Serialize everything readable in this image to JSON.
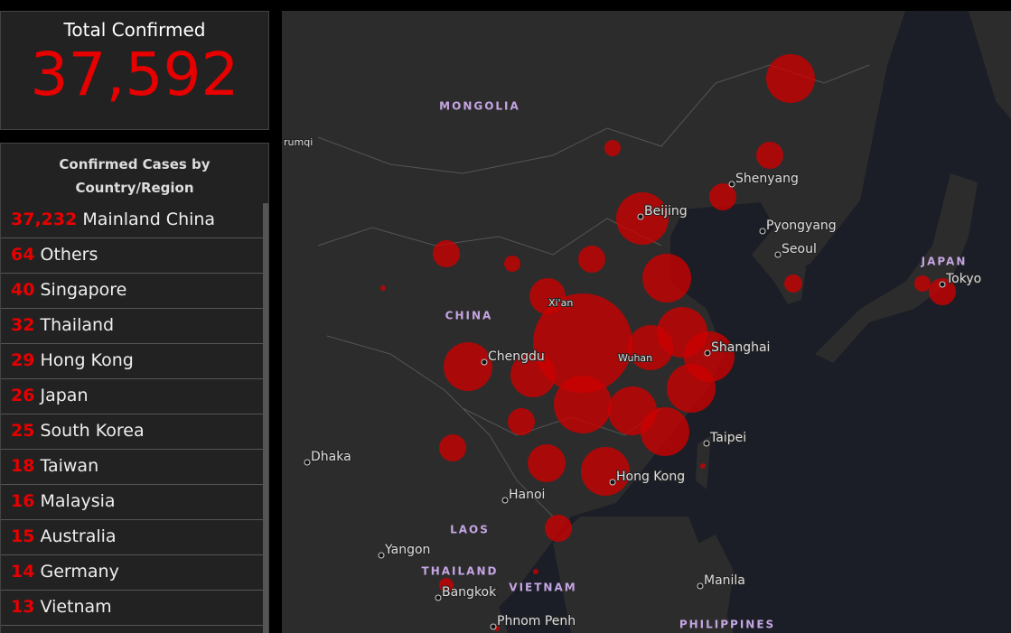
{
  "total": {
    "title": "Total Confirmed",
    "value": "37,592"
  },
  "list": {
    "title": "Confirmed Cases by Country/Region",
    "rows": [
      {
        "count": "37,232",
        "name": "Mainland China"
      },
      {
        "count": "64",
        "name": "Others"
      },
      {
        "count": "40",
        "name": "Singapore"
      },
      {
        "count": "32",
        "name": "Thailand"
      },
      {
        "count": "29",
        "name": "Hong Kong"
      },
      {
        "count": "26",
        "name": "Japan"
      },
      {
        "count": "25",
        "name": "South Korea"
      },
      {
        "count": "18",
        "name": "Taiwan"
      },
      {
        "count": "16",
        "name": "Malaysia"
      },
      {
        "count": "15",
        "name": "Australia"
      },
      {
        "count": "14",
        "name": "Germany"
      },
      {
        "count": "13",
        "name": "Vietnam"
      }
    ]
  },
  "map": {
    "countries": [
      "MONGOLIA",
      "CHINA",
      "JAPAN",
      "LAOS",
      "THAILAND",
      "VIETNAM",
      "PHILIPPINES"
    ],
    "cities": [
      "rumqi",
      "Shenyang",
      "Beijing",
      "Pyongyang",
      "Seoul",
      "Tokyo",
      "Xi'an",
      "Chengdu",
      "Wuhan",
      "Shanghai",
      "Taipei",
      "Hong Kong",
      "Dhaka",
      "Hanoi",
      "Yangon",
      "Bangkok",
      "Phnom Penh",
      "Manila"
    ]
  }
}
